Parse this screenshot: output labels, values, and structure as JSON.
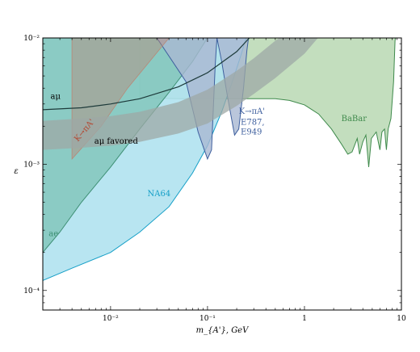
{
  "chart_data": {
    "type": "area",
    "title": "",
    "xlabel": "m_{A'}, GeV",
    "ylabel": "ε",
    "xscale": "log",
    "yscale": "log",
    "xlim": [
      0.002,
      10
    ],
    "ylim": [
      7e-05,
      0.01
    ],
    "x_tick_labels": [
      {
        "x": 0.01,
        "label": "10⁻²"
      },
      {
        "x": 0.1,
        "label": "10⁻¹"
      },
      {
        "x": 1,
        "label": "1"
      },
      {
        "x": 10,
        "label": "10"
      }
    ],
    "y_tick_labels": [
      {
        "y": 0.0001,
        "label": "10⁻⁴"
      },
      {
        "y": 0.001,
        "label": "10⁻³"
      },
      {
        "y": 0.01,
        "label": "10⁻²"
      }
    ],
    "legend": "none",
    "grid": false,
    "series": [
      {
        "name": "BaBar",
        "color": "#b9d8b3",
        "stroke": "#3f8a4c",
        "boundary": [
          [
            0.02,
            0.01
          ],
          [
            0.02,
            0.00335
          ],
          [
            0.05,
            0.0033
          ],
          [
            0.2,
            0.0033
          ],
          [
            0.5,
            0.0033
          ],
          [
            0.7,
            0.0032
          ],
          [
            1.0,
            0.00295
          ],
          [
            1.4,
            0.0025
          ],
          [
            1.9,
            0.0019
          ],
          [
            2.4,
            0.00145
          ],
          [
            2.8,
            0.0012
          ],
          [
            3.1,
            0.00125
          ],
          [
            3.5,
            0.0016
          ],
          [
            3.7,
            0.0012
          ],
          [
            4.0,
            0.0015
          ],
          [
            4.3,
            0.0017
          ],
          [
            4.6,
            0.00095
          ],
          [
            4.9,
            0.0016
          ],
          [
            5.5,
            0.0018
          ],
          [
            6.0,
            0.0013
          ],
          [
            6.3,
            0.0018
          ],
          [
            6.7,
            0.0019
          ],
          [
            7.0,
            0.0013
          ],
          [
            7.3,
            0.0019
          ],
          [
            7.8,
            0.0023
          ],
          [
            8.3,
            0.0045
          ],
          [
            8.6,
            0.0095
          ],
          [
            8.7,
            0.01
          ]
        ]
      },
      {
        "name": "NA64",
        "color": "#b0e2ef",
        "stroke": "#159fc7",
        "boundary": [
          [
            0.002,
            0.00012
          ],
          [
            0.004,
            0.00015
          ],
          [
            0.01,
            0.0002
          ],
          [
            0.02,
            0.00029
          ],
          [
            0.04,
            0.00046
          ],
          [
            0.07,
            0.00085
          ],
          [
            0.1,
            0.0014
          ],
          [
            0.14,
            0.0026
          ],
          [
            0.18,
            0.0045
          ],
          [
            0.22,
            0.0072
          ],
          [
            0.25,
            0.01
          ]
        ]
      },
      {
        "name": "",
        "color": "#7cc2b4",
        "stroke": "#3d8f74",
        "boundary": [
          [
            0.002,
            0.0002
          ],
          [
            0.003,
            0.00029
          ],
          [
            0.005,
            0.0005
          ],
          [
            0.01,
            0.00095
          ],
          [
            0.02,
            0.0019
          ],
          [
            0.04,
            0.0037
          ],
          [
            0.07,
            0.0065
          ],
          [
            0.1,
            0.01
          ]
        ]
      },
      {
        "name": "K→πA' E787, E949",
        "color": "#a9b8d2",
        "stroke": "#3e5f9e",
        "boundary": [
          [
            0.03,
            0.01
          ],
          [
            0.06,
            0.0045
          ],
          [
            0.08,
            0.0018
          ],
          [
            0.1,
            0.0011
          ],
          [
            0.11,
            0.0013
          ],
          [
            0.12,
            0.006
          ],
          [
            0.125,
            0.01
          ],
          [
            0.14,
            0.0065
          ],
          [
            0.16,
            0.0035
          ],
          [
            0.19,
            0.0017
          ],
          [
            0.21,
            0.0019
          ],
          [
            0.235,
            0.004
          ],
          [
            0.255,
            0.008
          ],
          [
            0.265,
            0.01
          ]
        ]
      },
      {
        "name": "aμ favored",
        "color": "#9ea8a6",
        "upper": [
          [
            0.002,
            0.0022
          ],
          [
            0.005,
            0.0023
          ],
          [
            0.01,
            0.0024
          ],
          [
            0.02,
            0.0026
          ],
          [
            0.05,
            0.0031
          ],
          [
            0.1,
            0.0039
          ],
          [
            0.2,
            0.0055
          ],
          [
            0.3,
            0.0069
          ],
          [
            0.5,
            0.0095
          ],
          [
            0.55,
            0.01
          ]
        ],
        "lower": [
          [
            0.002,
            0.0013
          ],
          [
            0.005,
            0.00135
          ],
          [
            0.01,
            0.0014
          ],
          [
            0.02,
            0.0015
          ],
          [
            0.05,
            0.00175
          ],
          [
            0.1,
            0.0021
          ],
          [
            0.2,
            0.0029
          ],
          [
            0.3,
            0.0036
          ],
          [
            0.5,
            0.0048
          ],
          [
            1.0,
            0.0075
          ],
          [
            1.3,
            0.0095
          ],
          [
            1.38,
            0.01
          ]
        ]
      },
      {
        "name": "aμ",
        "color": "#1d3a3a",
        "line": [
          [
            0.002,
            0.0027
          ],
          [
            0.005,
            0.0028
          ],
          [
            0.01,
            0.003
          ],
          [
            0.02,
            0.0033
          ],
          [
            0.05,
            0.0041
          ],
          [
            0.1,
            0.0053
          ],
          [
            0.2,
            0.0078
          ],
          [
            0.27,
            0.01
          ]
        ]
      },
      {
        "name": "K→πA'",
        "color": "#b88877",
        "boundary": [
          [
            0.004,
            0.0011
          ],
          [
            0.004,
            0.01
          ],
          [
            0.04,
            0.01
          ],
          [
            0.015,
            0.004
          ],
          [
            0.008,
            0.002
          ],
          [
            0.004,
            0.0011
          ]
        ]
      }
    ],
    "annotations": [
      {
        "text": "aμ",
        "x": 0.0024,
        "y": 0.0033,
        "color": "#000000"
      },
      {
        "text": "aμ favored",
        "x": 0.0068,
        "y": 0.00145,
        "color": "#000000"
      },
      {
        "text": "K→πA'",
        "x": 0.0046,
        "y": 0.0015,
        "color": "#b34a35",
        "rotate": -50
      },
      {
        "text": "K→πA'",
        "x": 0.21,
        "y": 0.0025,
        "color": "#3e5f9e"
      },
      {
        "text": "E787,",
        "x": 0.22,
        "y": 0.00205,
        "color": "#3e5f9e"
      },
      {
        "text": "E949",
        "x": 0.22,
        "y": 0.00172,
        "color": "#3e5f9e"
      },
      {
        "text": "BaBar",
        "x": 2.4,
        "y": 0.0022,
        "color": "#3f8a4c"
      },
      {
        "text": "NA64",
        "x": 0.024,
        "y": 0.00056,
        "color": "#159fc7"
      },
      {
        "text": "ae",
        "x": 0.0023,
        "y": 0.00027,
        "color": "#3d8f74"
      }
    ]
  }
}
